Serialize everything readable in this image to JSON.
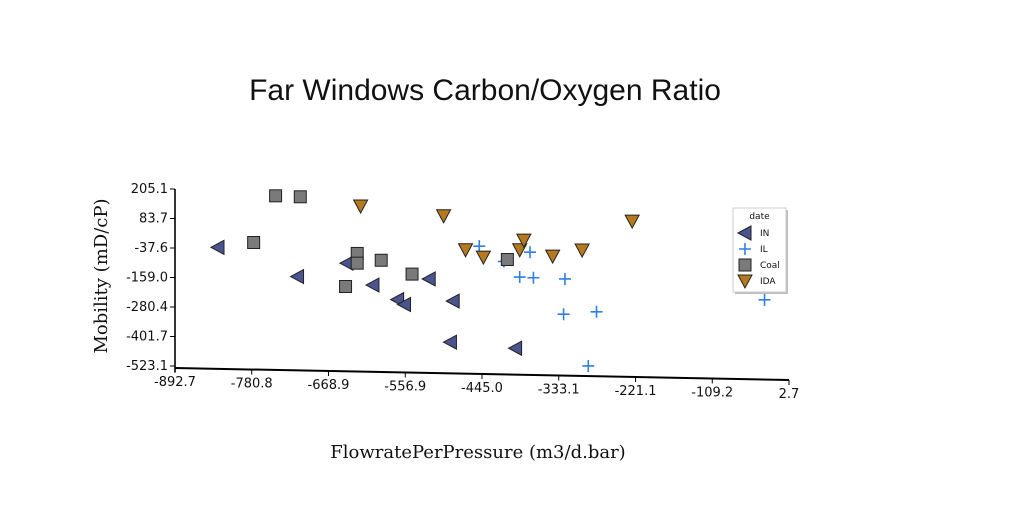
{
  "chart_data": {
    "type": "scatter",
    "title": "Far Windows Carbon/Oxygen Ratio",
    "xlabel": "FlowratePerPressure (m3/d.bar)",
    "ylabel": "Mobility (mD/cP)",
    "xlim": [
      -892.7,
      2.7
    ],
    "ylim": [
      -523.1,
      205.1
    ],
    "xticks": [
      "-892.7",
      "-780.8",
      "-668.9",
      "-556.9",
      "-445.0",
      "-333.1",
      "-221.1",
      "-109.2",
      "2.7"
    ],
    "yticks": [
      "205.1",
      "83.7",
      "-37.6",
      "-159.0",
      "-280.4",
      "-401.7",
      "-523.1"
    ],
    "legend": {
      "title": "date",
      "position": "right",
      "entries": [
        "IN",
        "IL",
        "Coal",
        "IDA"
      ]
    },
    "grid": false,
    "series": [
      {
        "name": "IN",
        "marker": "triangle-left",
        "color": "#4a5590",
        "points": [
          [
            -830,
            -35
          ],
          [
            -714,
            -155
          ],
          [
            -642,
            -100
          ],
          [
            -604,
            -190
          ],
          [
            -568,
            -250
          ],
          [
            -558,
            -270
          ],
          [
            -522,
            -165
          ],
          [
            -487,
            -256
          ],
          [
            -491,
            -425
          ],
          [
            -396,
            -450
          ]
        ]
      },
      {
        "name": "IL",
        "marker": "plus",
        "color": "#2f7fe8",
        "points": [
          [
            -449,
            -30
          ],
          [
            -413,
            -93
          ],
          [
            -390,
            -157
          ],
          [
            -370,
            -160
          ],
          [
            -375,
            -55
          ],
          [
            -324,
            -165
          ],
          [
            -326,
            -310
          ],
          [
            -278,
            -300
          ],
          [
            -290,
            -523
          ],
          [
            -33,
            -251
          ]
        ]
      },
      {
        "name": "Coal",
        "marker": "square",
        "color": "#7a7a7a",
        "points": [
          [
            -746,
            177
          ],
          [
            -710,
            173
          ],
          [
            -778,
            -15
          ],
          [
            -627,
            -60
          ],
          [
            -627,
            -100
          ],
          [
            -592,
            -88
          ],
          [
            -547,
            -145
          ],
          [
            -644,
            -196
          ],
          [
            -408,
            -85
          ]
        ]
      },
      {
        "name": "IDA",
        "marker": "triangle-down",
        "color": "#b57a1f",
        "points": [
          [
            -622,
            135
          ],
          [
            -501,
            95
          ],
          [
            -469,
            -45
          ],
          [
            -390,
            -45
          ],
          [
            -384,
            -5
          ],
          [
            -342,
            -71
          ],
          [
            -299,
            -46
          ],
          [
            -226,
            73
          ],
          [
            -62,
            -118
          ],
          [
            -443,
            -75
          ]
        ]
      }
    ]
  }
}
